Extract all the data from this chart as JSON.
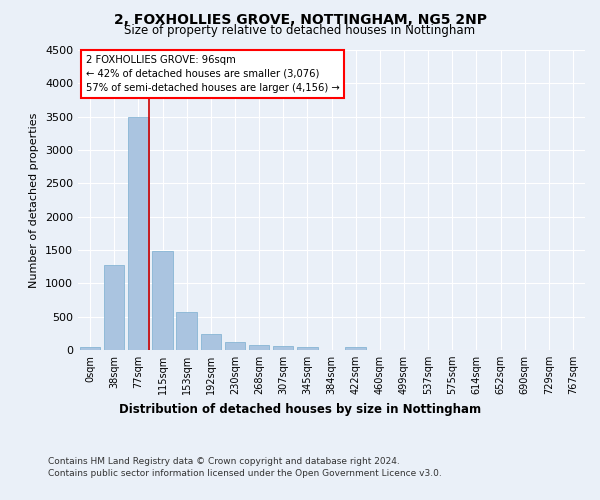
{
  "title1": "2, FOXHOLLIES GROVE, NOTTINGHAM, NG5 2NP",
  "title2": "Size of property relative to detached houses in Nottingham",
  "xlabel": "Distribution of detached houses by size in Nottingham",
  "ylabel": "Number of detached properties",
  "bar_labels": [
    "0sqm",
    "38sqm",
    "77sqm",
    "115sqm",
    "153sqm",
    "192sqm",
    "230sqm",
    "268sqm",
    "307sqm",
    "345sqm",
    "384sqm",
    "422sqm",
    "460sqm",
    "499sqm",
    "537sqm",
    "575sqm",
    "614sqm",
    "652sqm",
    "690sqm",
    "729sqm",
    "767sqm"
  ],
  "bar_values": [
    40,
    1270,
    3500,
    1480,
    570,
    235,
    115,
    80,
    55,
    40,
    0,
    50,
    0,
    0,
    0,
    0,
    0,
    0,
    0,
    0,
    0
  ],
  "bar_color": "#aac4e0",
  "bar_edge_color": "#7aaed0",
  "ylim": [
    0,
    4500
  ],
  "yticks": [
    0,
    500,
    1000,
    1500,
    2000,
    2500,
    3000,
    3500,
    4000,
    4500
  ],
  "footer_line1": "Contains HM Land Registry data © Crown copyright and database right 2024.",
  "footer_line2": "Contains public sector information licensed under the Open Government Licence v3.0.",
  "bg_color": "#eaf0f8",
  "grid_color": "#ffffff",
  "red_line_color": "#cc0000",
  "annotation_text_line1": "2 FOXHOLLIES GROVE: 96sqm",
  "annotation_text_line2": "← 42% of detached houses are smaller (3,076)",
  "annotation_text_line3": "57% of semi-detached houses are larger (4,156) →"
}
